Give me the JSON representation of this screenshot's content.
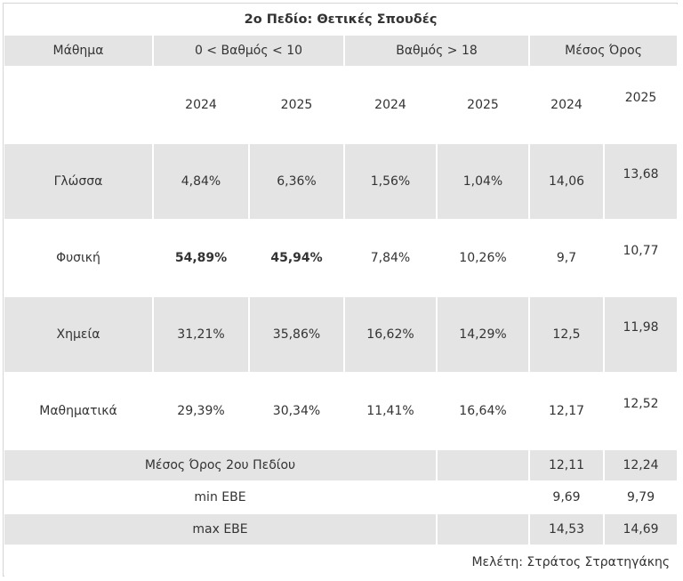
{
  "title": "2ο Πεδίο: Θετικές Σπουδές",
  "headers": {
    "subject": "Μάθημα",
    "low_grade": "0 < Βαθμός < 10",
    "high_grade": "Βαθμός > 18",
    "average": "Μέσος Όρος"
  },
  "years": [
    "2024",
    "2025",
    "2024",
    "2025",
    "2024",
    "2025"
  ],
  "rows": [
    {
      "subject": "Γλώσσα",
      "low_2024": "4,84%",
      "low_2025": "6,36%",
      "high_2024": "1,56%",
      "high_2025": "1,04%",
      "avg_2024": "14,06",
      "avg_2025": "13,68"
    },
    {
      "subject": "Φυσική",
      "low_2024": "54,89%",
      "low_2025": "45,94%",
      "high_2024": "7,84%",
      "high_2025": "10,26%",
      "avg_2024": "9,7",
      "avg_2025": "10,77"
    },
    {
      "subject": "Χημεία",
      "low_2024": "31,21%",
      "low_2025": "35,86%",
      "high_2024": "16,62%",
      "high_2025": "14,29%",
      "avg_2024": "12,5",
      "avg_2025": "11,98"
    },
    {
      "subject": "Μαθηματικά",
      "low_2024": "29,39%",
      "low_2025": "30,34%",
      "high_2024": "11,41%",
      "high_2025": "16,64%",
      "avg_2024": "12,17",
      "avg_2025": "12,52"
    }
  ],
  "footer": [
    {
      "label": "Μέσος Όρος 2ου Πεδίου",
      "avg_2024": "12,11",
      "avg_2025": "12,24"
    },
    {
      "label": "min ΕΒΕ",
      "avg_2024": "9,69",
      "avg_2025": "9,79"
    },
    {
      "label": "max ΕΒΕ",
      "avg_2024": "14,53",
      "avg_2025": "14,69"
    }
  ],
  "credit": "Μελέτη: Στράτος Στρατηγάκης"
}
